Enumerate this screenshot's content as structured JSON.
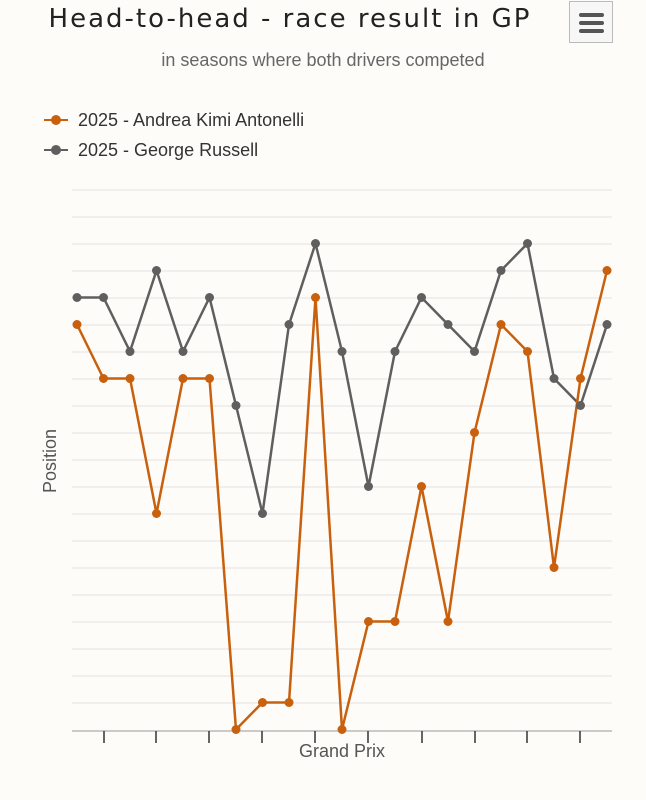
{
  "header": {
    "title": "Head-to-head - race result in GP",
    "subtitle": "in seasons where both drivers competed",
    "menu_icon": "hamburger-menu-icon"
  },
  "chart_data": {
    "type": "line",
    "xlabel": "Grand Prix",
    "ylabel": "Position",
    "ylim": [
      1,
      20
    ],
    "y_reversed": true,
    "grid": true,
    "legend_position": "top-left",
    "x": [
      1,
      2,
      3,
      4,
      5,
      6,
      7,
      8,
      9,
      10,
      11,
      12,
      13,
      14,
      15,
      16,
      17,
      18,
      19,
      20,
      21
    ],
    "series": [
      {
        "name": "2025 - Andrea Kimi Antonelli",
        "color": "#c8600e",
        "values": [
          5,
          7,
          7,
          12,
          7,
          7,
          20,
          19,
          19,
          4,
          20,
          16,
          16,
          11,
          16,
          9,
          5,
          6,
          14,
          7,
          3
        ]
      },
      {
        "name": "2025 - George Russell",
        "color": "#5f5f5f",
        "values": [
          4,
          4,
          6,
          3,
          6,
          4,
          8,
          12,
          5,
          2,
          6,
          11,
          6,
          4,
          5,
          6,
          3,
          2,
          7,
          8,
          5
        ]
      }
    ]
  }
}
